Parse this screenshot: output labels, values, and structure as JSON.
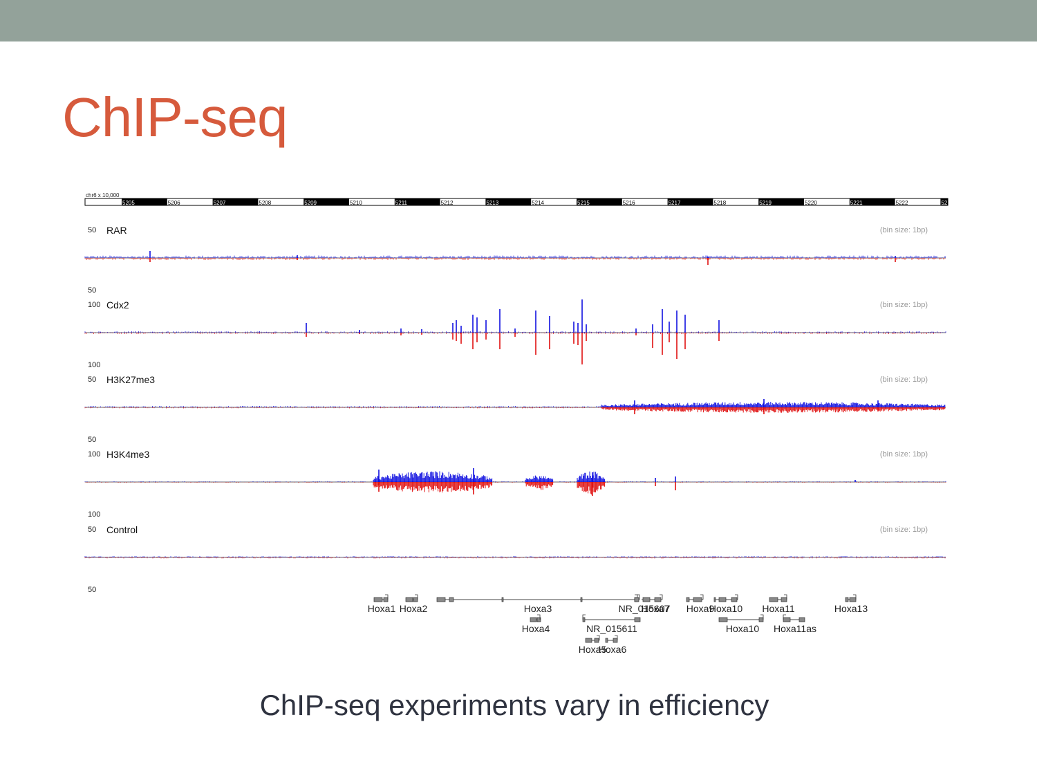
{
  "slide": {
    "title": "ChIP-seq",
    "caption": "ChIP-seq experiments vary in efficiency"
  },
  "colors": {
    "band": "#93a29a",
    "title": "#d65a3c",
    "caption": "#2f3340",
    "forward_strand": "#1010e0",
    "reverse_strand": "#e01010"
  },
  "genome_browser": {
    "chromosome_label": "chr6 x 10,000",
    "ruler_ticks": [
      "5205",
      "5206",
      "5207",
      "5208",
      "5209",
      "5210",
      "5211",
      "5212",
      "5213",
      "5214",
      "5215",
      "5216",
      "5217",
      "5218",
      "5219",
      "5220",
      "5221",
      "5222",
      "52"
    ],
    "tracks": [
      {
        "name": "RAR",
        "scale_top": "50",
        "scale_bottom": "50",
        "bin_size": "(bin size: 1bp)",
        "signal": "low",
        "peaks": [
          {
            "pos": 0.076,
            "up": 10,
            "down": 6
          },
          {
            "pos": 0.725,
            "up": 2,
            "down": 10
          }
        ]
      },
      {
        "name": "Cdx2",
        "scale_top": "100",
        "scale_bottom": "100",
        "bin_size": "(bin size: 1bp)",
        "signal": "high",
        "peaks": [
          {
            "pos": 0.258,
            "up": 14,
            "down": 6
          },
          {
            "pos": 0.43,
            "up": 8,
            "down": 5
          },
          {
            "pos": 0.433,
            "up": 10,
            "down": 4
          },
          {
            "pos": 0.43,
            "up": 10,
            "down": 5
          },
          {
            "pos": 0.434,
            "up": 9,
            "down": 5
          },
          {
            "pos": 0.42,
            "up": 8,
            "down": 6
          },
          {
            "pos": 0.429,
            "up": 8,
            "down": 5
          },
          {
            "pos": 0.431,
            "up": 9,
            "down": 5
          },
          {
            "pos": 0.432,
            "up": 7,
            "down": 4
          },
          {
            "pos": 0.43,
            "up": 8,
            "down": 5
          }
        ],
        "peaks_main": [
          {
            "pos": 0.427,
            "up": 10,
            "down": 6
          },
          {
            "pos": 0.428,
            "up": 8,
            "down": 5
          },
          {
            "pos": 0.428,
            "up": 8,
            "down": 5
          }
        ]
      },
      {
        "name": "H3K27me3",
        "scale_top": "50",
        "scale_bottom": "50",
        "bin_size": "(bin size: 1bp)",
        "signal": "broad-right",
        "peaks": []
      },
      {
        "name": "H3K4me3",
        "scale_top": "100",
        "scale_bottom": "100",
        "bin_size": "(bin size: 1bp)",
        "signal": "broad-middle",
        "peaks": []
      },
      {
        "name": "Control",
        "scale_top": "50",
        "scale_bottom": "50",
        "bin_size": "(bin size: 1bp)",
        "signal": "low",
        "peaks": []
      }
    ],
    "genes": [
      {
        "label": "Hoxa1",
        "strand": "-"
      },
      {
        "label": "Hoxa2",
        "strand": "-"
      },
      {
        "label": "Hoxa3",
        "strand": "-"
      },
      {
        "label": "Hoxa4",
        "strand": "-"
      },
      {
        "label": "NR_015611",
        "strand": "+"
      },
      {
        "label": "Hoxa5",
        "strand": "-"
      },
      {
        "label": "Hoxa6",
        "strand": "-"
      },
      {
        "label": "NR_015607",
        "strand": "-"
      },
      {
        "label": "Hoxa7",
        "strand": "-"
      },
      {
        "label": "Hoxa9",
        "strand": "-"
      },
      {
        "label": "Hoxa10",
        "strand": "-"
      },
      {
        "label": "Hoxa10",
        "strand": "-"
      },
      {
        "label": "Hoxa11",
        "strand": "-"
      },
      {
        "label": "Hoxa11as",
        "strand": "+"
      },
      {
        "label": "Hoxa13",
        "strand": "-"
      }
    ]
  }
}
